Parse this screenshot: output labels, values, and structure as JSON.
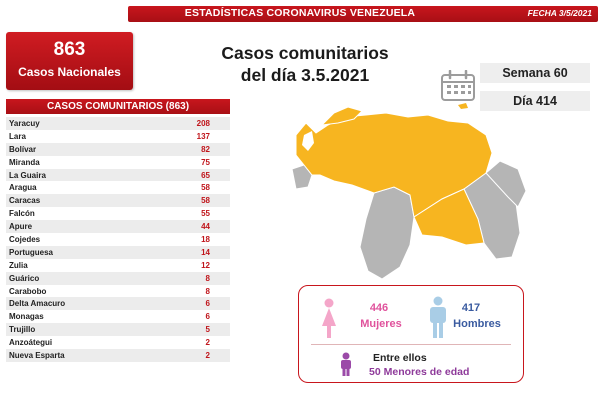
{
  "header": {
    "title": "ESTADÍSTICAS CORONAVIRUS VENEZUELA",
    "date": "FECHA 3/5/2021"
  },
  "summary": {
    "total": "863",
    "total_label": "Casos Nacionales"
  },
  "headline": {
    "line1": "Casos comunitarios",
    "line2": "del día 3.5.2021"
  },
  "calendar": {
    "icon": "calendar-icon",
    "week": "Semana 60",
    "day": "Día 414"
  },
  "table": {
    "title": "CASOS COMUNITARIOS (863)",
    "rows": [
      {
        "state": "Yaracuy",
        "cases": "208"
      },
      {
        "state": "Lara",
        "cases": "137"
      },
      {
        "state": "Bolívar",
        "cases": "82"
      },
      {
        "state": "Miranda",
        "cases": "75"
      },
      {
        "state": "La Guaira",
        "cases": "65"
      },
      {
        "state": "Aragua",
        "cases": "58"
      },
      {
        "state": "Caracas",
        "cases": "58"
      },
      {
        "state": "Falcón",
        "cases": "55"
      },
      {
        "state": "Apure",
        "cases": "44"
      },
      {
        "state": "Cojedes",
        "cases": "18"
      },
      {
        "state": "Portuguesa",
        "cases": "14"
      },
      {
        "state": "Zulia",
        "cases": "12"
      },
      {
        "state": "Guárico",
        "cases": "8"
      },
      {
        "state": "Carabobo",
        "cases": "8"
      },
      {
        "state": "Delta Amacuro",
        "cases": "6"
      },
      {
        "state": "Monagas",
        "cases": "6"
      },
      {
        "state": "Trujillo",
        "cases": "5"
      },
      {
        "state": "Anzoátegui",
        "cases": "2"
      },
      {
        "state": "Nueva Esparta",
        "cases": "2"
      }
    ]
  },
  "map": {
    "affected_color": "#f7b520",
    "unaffected_color": "#b5b5b5"
  },
  "demographics": {
    "women_count": "446",
    "women_label": "Mujeres",
    "men_count": "417",
    "men_label": "Hombres",
    "between_label": "Entre ellos",
    "minors_count": "50",
    "minors_label": "Menores de edad",
    "women_color": "#f4a6c9",
    "men_color": "#a9cde6",
    "child_color": "#9b4aa8"
  }
}
